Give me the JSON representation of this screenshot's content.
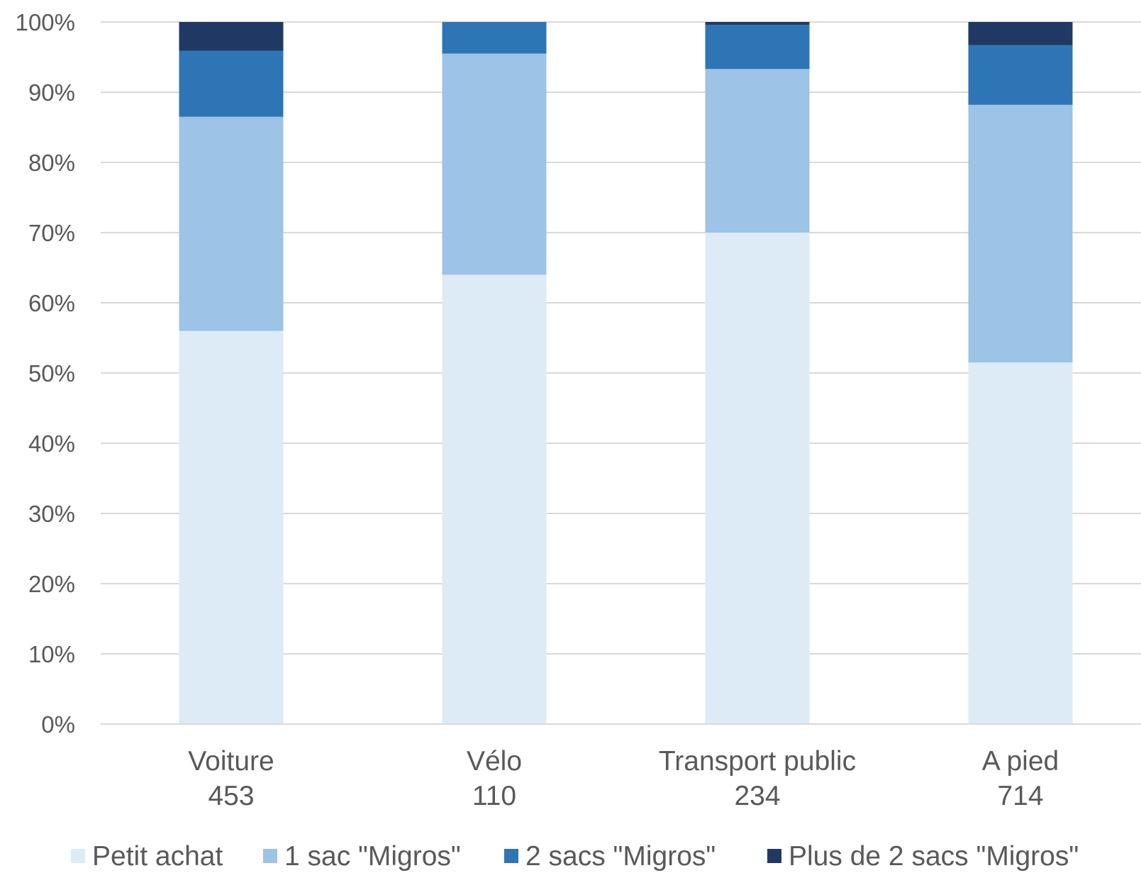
{
  "chart_data": {
    "type": "bar",
    "stacked": true,
    "percent_stacked": true,
    "categories": [
      {
        "label": "Voiture",
        "count": "453"
      },
      {
        "label": "Vélo",
        "count": "110"
      },
      {
        "label": "Transport public",
        "count": "234"
      },
      {
        "label": "A pied",
        "count": "714"
      }
    ],
    "series": [
      {
        "name": "Petit achat",
        "color": "#DDEBF7",
        "values": [
          56,
          64,
          70,
          51.5
        ]
      },
      {
        "name": "1 sac \"Migros\"",
        "color": "#9DC3E6",
        "values": [
          30.5,
          31.5,
          23.3,
          36.7
        ]
      },
      {
        "name": "2 sacs \"Migros\"",
        "color": "#2E75B6",
        "values": [
          9.4,
          4.5,
          6.3,
          8.5
        ]
      },
      {
        "name": "Plus de 2 sacs \"Migros\"",
        "color": "#1F3864",
        "values": [
          4.1,
          0,
          0.4,
          3.3
        ]
      }
    ],
    "y_ticks": [
      "0%",
      "10%",
      "20%",
      "30%",
      "40%",
      "50%",
      "60%",
      "70%",
      "80%",
      "90%",
      "100%"
    ],
    "ylim": [
      0,
      100
    ],
    "title": "",
    "xlabel": "",
    "ylabel": "",
    "grid": true,
    "gridline_color": "#D9D9D9",
    "legend_position": "bottom"
  }
}
